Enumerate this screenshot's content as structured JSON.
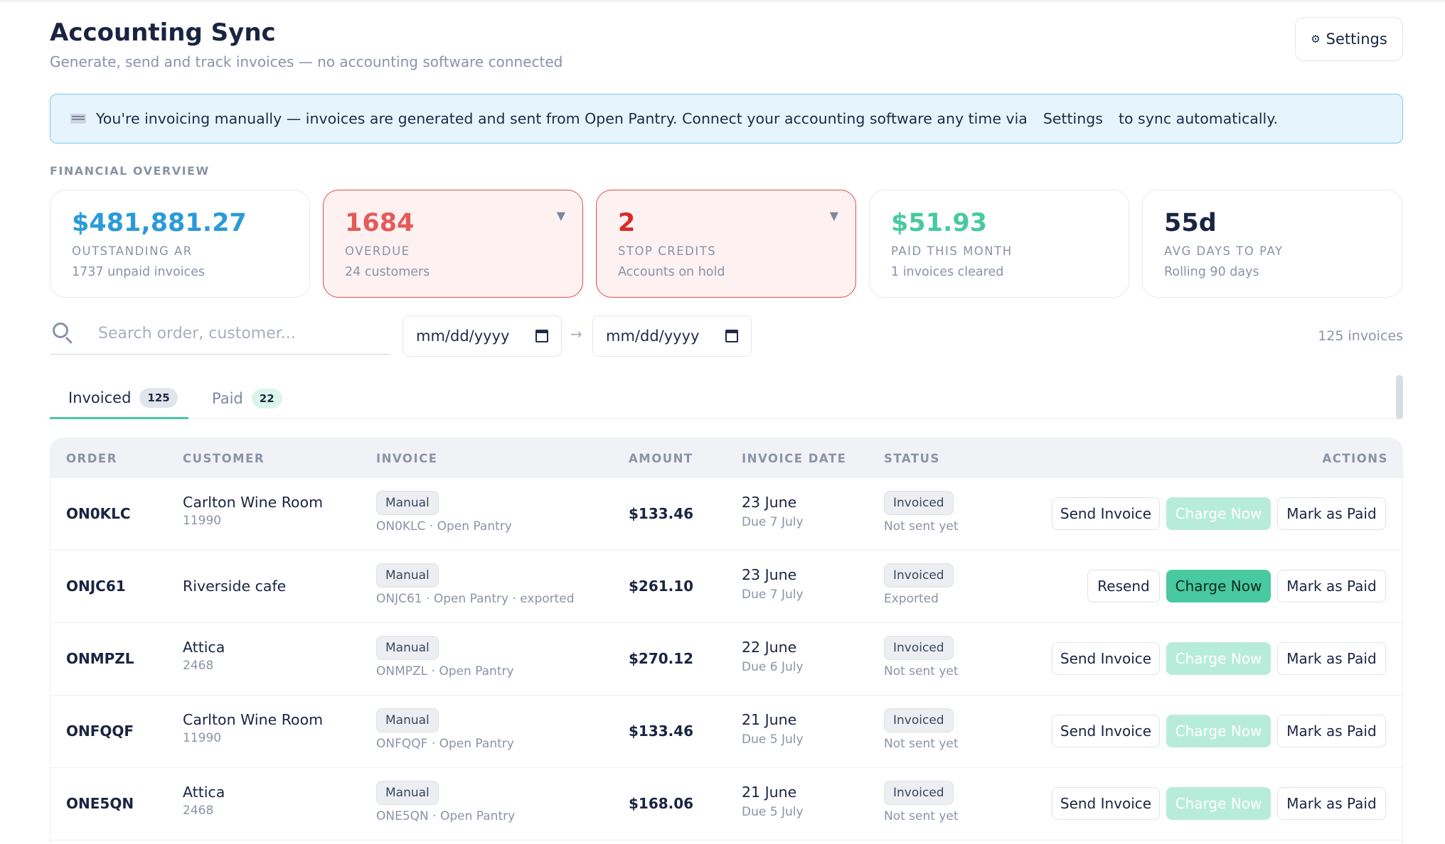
{
  "header": {
    "title": "Accounting Sync",
    "subtitle": "Generate, send and track invoices — no accounting software connected",
    "settings_icon": "⚙",
    "settings_label": "Settings"
  },
  "banner": {
    "icon": "flag-icon",
    "text_before": "You're invoicing manually — invoices are generated and sent from Open Pantry. Connect your accounting software any time via",
    "link": "Settings",
    "text_after": "to sync automatically."
  },
  "overview": {
    "label": "FINANCIAL OVERVIEW",
    "cards": [
      {
        "value": "$481,881.27",
        "label": "OUTSTANDING AR",
        "sub": "1737 unpaid invoices"
      },
      {
        "value": "1684",
        "label": "OVERDUE",
        "sub": "24 customers",
        "caret": "▼"
      },
      {
        "value": "2",
        "label": "STOP CREDITS",
        "sub": "Accounts on hold",
        "caret": "▼"
      },
      {
        "value": "$51.93",
        "label": "PAID THIS MONTH",
        "sub": "1 invoices cleared"
      },
      {
        "value": "55d",
        "label": "AVG DAYS TO PAY",
        "sub": "Rolling 90 days"
      }
    ]
  },
  "filters": {
    "search_placeholder": "Search order, customer...",
    "date_from": "mm/dd/yyyy",
    "date_to": "mm/dd/yyyy",
    "arrow": "→",
    "count": "125 invoices"
  },
  "tabs": [
    {
      "label": "Invoiced",
      "count": "125"
    },
    {
      "label": "Paid",
      "count": "22"
    }
  ],
  "table": {
    "columns": [
      "ORDER",
      "CUSTOMER",
      "INVOICE",
      "AMOUNT",
      "INVOICE DATE",
      "STATUS",
      "ACTIONS"
    ],
    "rows": [
      {
        "order": "ON0KLC",
        "customer": "Carlton Wine Room",
        "customer_id": "11990",
        "invoice_tag": "Manual",
        "invoice_meta": "ON0KLC · Open Pantry",
        "amount": "$133.46",
        "date": "23 June",
        "due": "Due 7 July",
        "status": "Invoiced",
        "status_sub": "Not sent yet",
        "action1": "Send Invoice",
        "action2": "Charge Now",
        "action3": "Mark as Paid"
      },
      {
        "order": "ONJC61",
        "customer": "Riverside cafe",
        "customer_id": "",
        "invoice_tag": "Manual",
        "invoice_meta": "ONJC61 · Open Pantry · exported",
        "amount": "$261.10",
        "date": "23 June",
        "due": "Due 7 July",
        "status": "Invoiced",
        "status_sub": "Exported",
        "action1": "Resend",
        "action2": "Charge Now",
        "action3": "Mark as Paid"
      },
      {
        "order": "ONMPZL",
        "customer": "Attica",
        "customer_id": "2468",
        "invoice_tag": "Manual",
        "invoice_meta": "ONMPZL · Open Pantry",
        "amount": "$270.12",
        "date": "22 June",
        "due": "Due 6 July",
        "status": "Invoiced",
        "status_sub": "Not sent yet",
        "action1": "Send Invoice",
        "action2": "Charge Now",
        "action3": "Mark as Paid"
      },
      {
        "order": "ONFQQF",
        "customer": "Carlton Wine Room",
        "customer_id": "11990",
        "invoice_tag": "Manual",
        "invoice_meta": "ONFQQF · Open Pantry",
        "amount": "$133.46",
        "date": "21 June",
        "due": "Due 5 July",
        "status": "Invoiced",
        "status_sub": "Not sent yet",
        "action1": "Send Invoice",
        "action2": "Charge Now",
        "action3": "Mark as Paid"
      },
      {
        "order": "ONE5QN",
        "customer": "Attica",
        "customer_id": "2468",
        "invoice_tag": "Manual",
        "invoice_meta": "ONE5QN · Open Pantry",
        "amount": "$168.06",
        "date": "21 June",
        "due": "Due 5 July",
        "status": "Invoiced",
        "status_sub": "Not sent yet",
        "action1": "Send Invoice",
        "action2": "Charge Now",
        "action3": "Mark as Paid"
      }
    ]
  },
  "colors": {
    "accent": "#48c9a0",
    "ar_blue": "#2a9ad9",
    "alert_red": "#d72a2a",
    "banner_bg": "#e6f4fd"
  }
}
